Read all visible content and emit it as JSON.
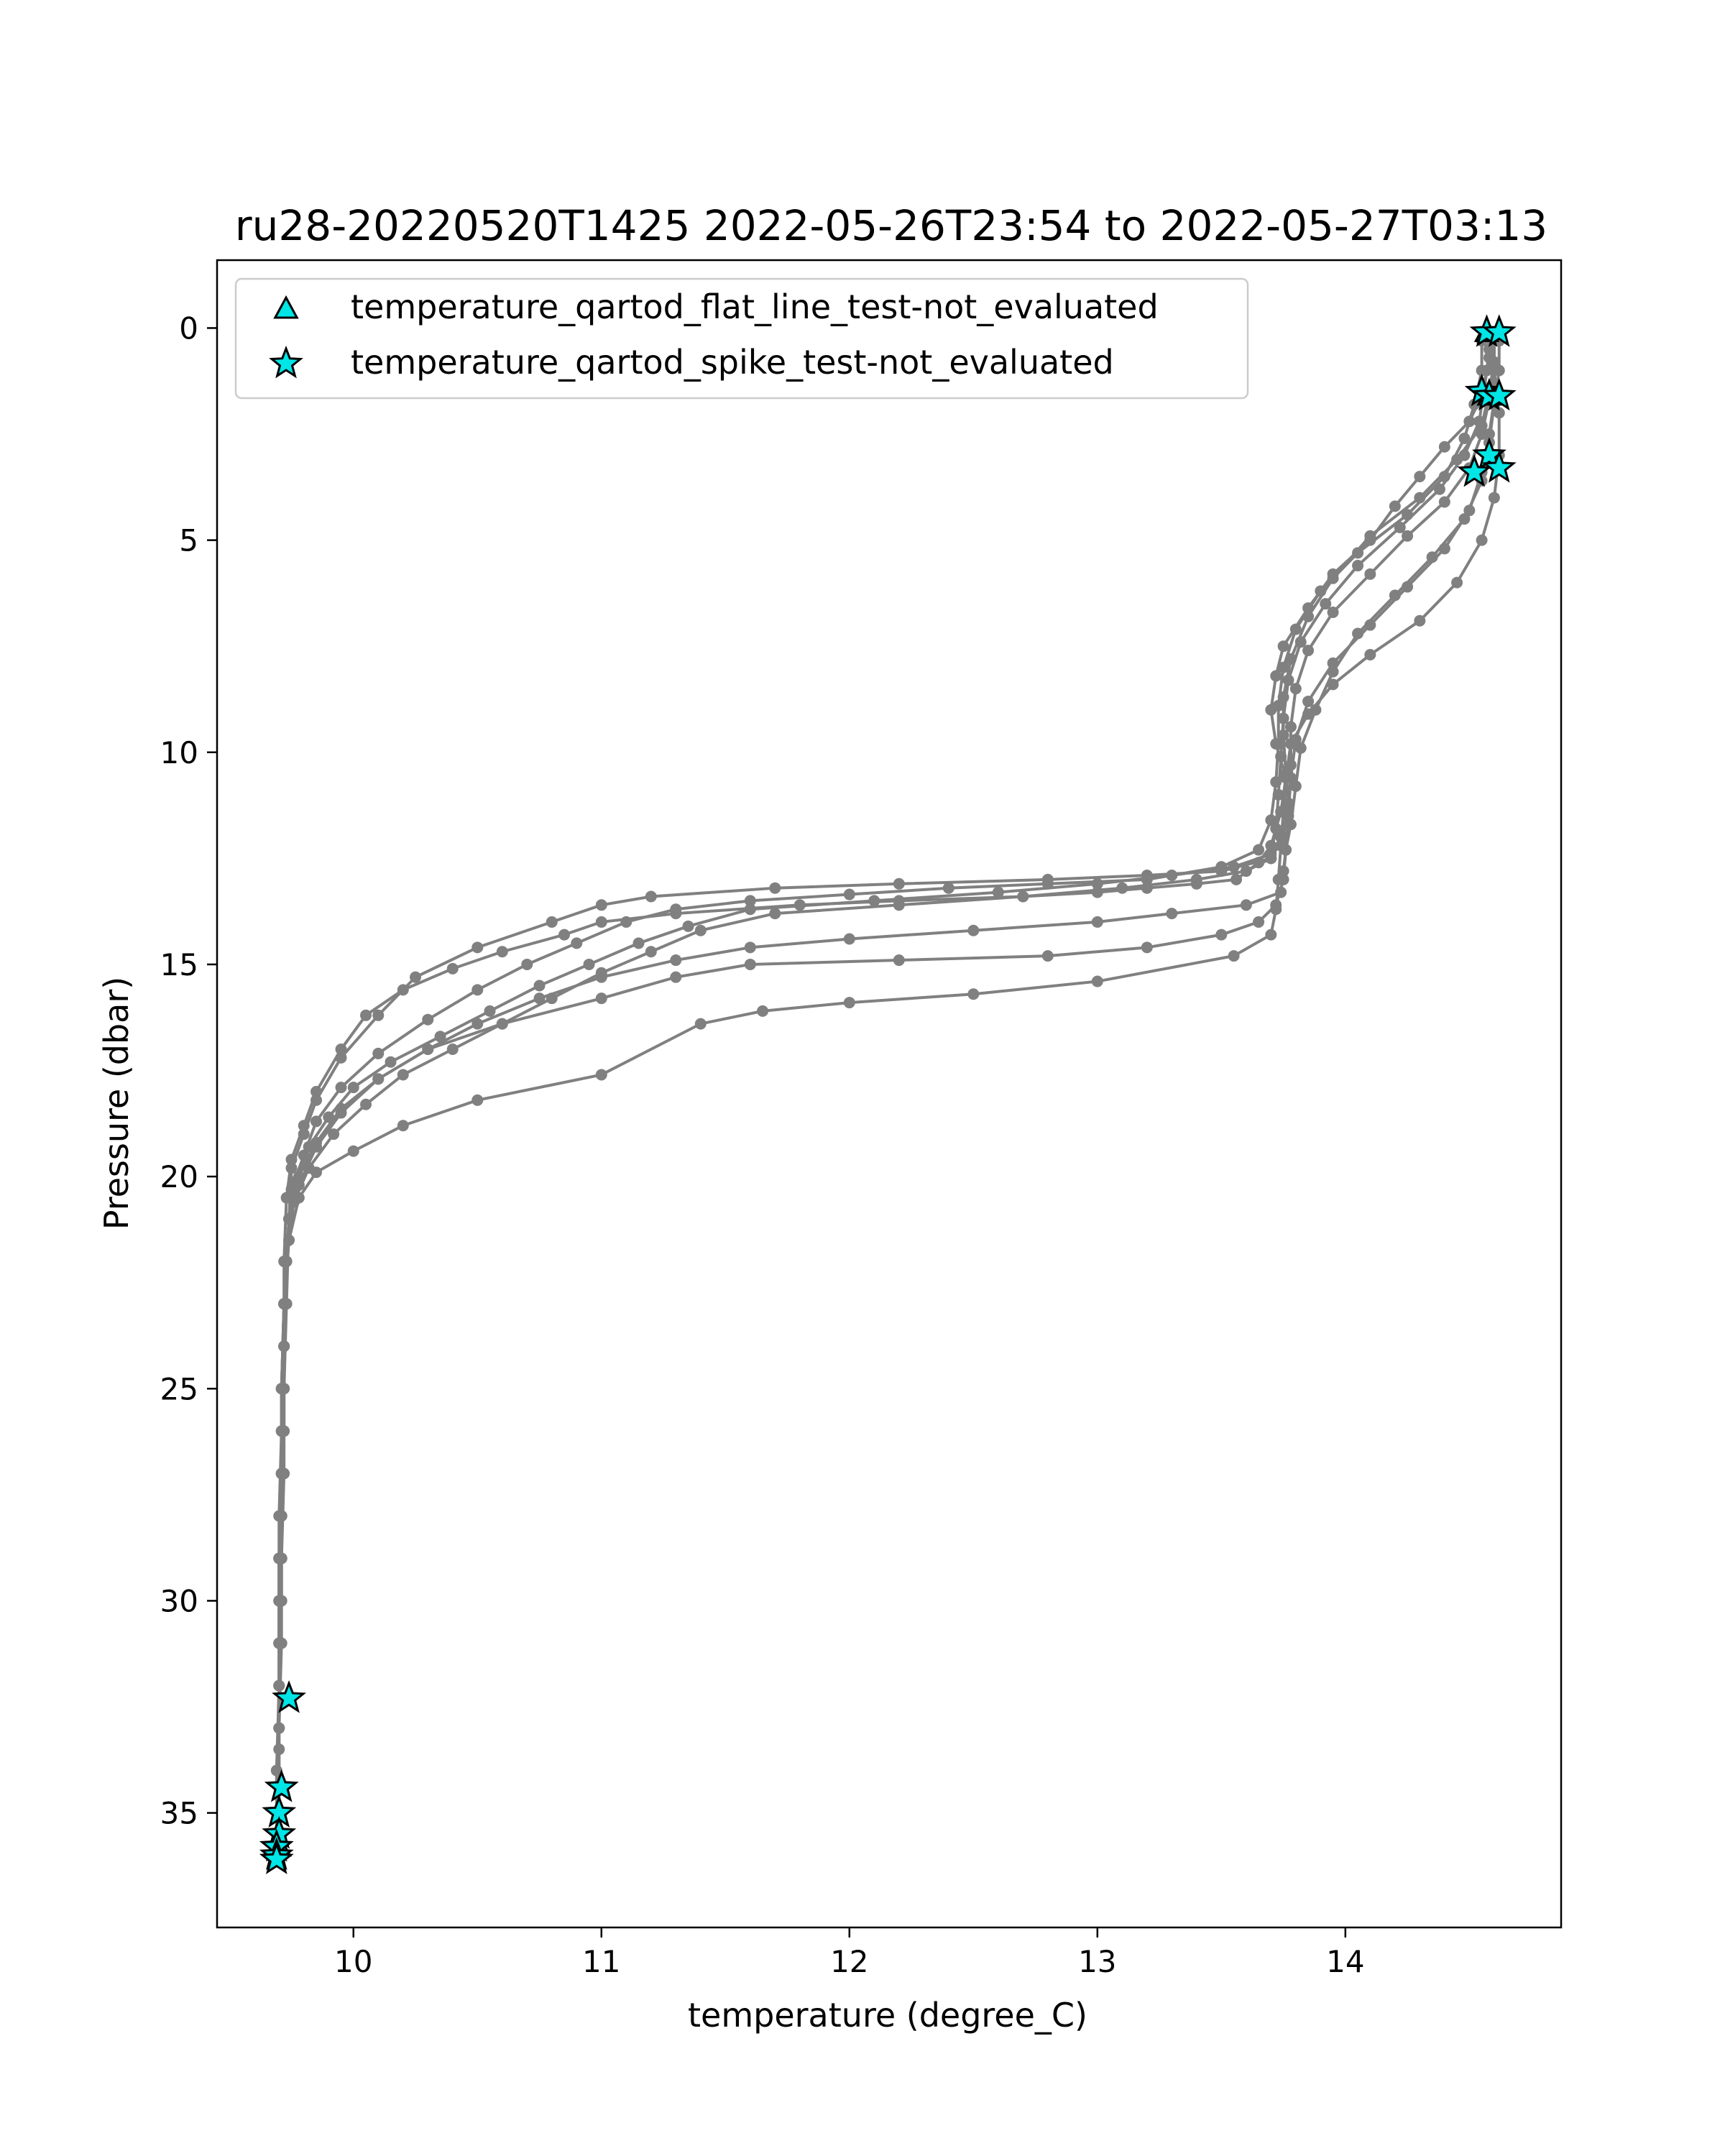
{
  "chart_data": {
    "type": "line",
    "title": "ru28-20220520T1425 2022-05-26T23:54 to 2022-05-27T03:13",
    "xlabel": "temperature (degree_C)",
    "ylabel": "Pressure (dbar)",
    "xlim": [
      9.45,
      14.87
    ],
    "ylim": [
      37.7,
      -1.6
    ],
    "y_inverted": true,
    "grid": false,
    "legend_position": "top-left",
    "xticks": [
      10,
      11,
      12,
      13,
      14
    ],
    "yticks": [
      0,
      5,
      10,
      15,
      20,
      25,
      30,
      35
    ],
    "colors": {
      "profile_line": "#808080",
      "marker_fill": "#00e5e5",
      "marker_edge": "#000000"
    },
    "legend": [
      {
        "label": "temperature_qartod_flat_line_test-not_evaluated",
        "marker": "triangle"
      },
      {
        "label": "temperature_qartod_spike_test-not_evaluated",
        "marker": "star"
      }
    ],
    "profiles": [
      {
        "temperature": [
          14.57,
          14.58,
          14.57,
          14.55,
          14.5,
          14.4,
          14.3,
          14.2,
          14.1,
          13.95,
          13.85,
          13.75,
          13.72,
          13.7,
          13.72,
          13.76,
          13.74,
          13.7,
          13.65,
          13.56,
          13.4,
          13.2,
          13.0,
          12.7,
          12.2,
          11.8,
          11.3,
          11.0,
          10.85,
          10.6,
          10.4,
          10.2,
          10.05,
          9.95,
          9.85,
          9.8,
          9.75,
          9.73,
          9.72,
          9.72,
          9.71,
          9.71,
          9.71,
          9.7,
          9.7,
          9.7,
          9.69
        ],
        "pressure": [
          0.1,
          0.5,
          1.0,
          1.6,
          2.2,
          2.8,
          3.5,
          4.2,
          5.0,
          5.8,
          6.6,
          7.5,
          8.2,
          9.0,
          9.8,
          10.6,
          11.4,
          12.2,
          12.6,
          13.0,
          13.1,
          13.2,
          13.3,
          13.4,
          13.5,
          13.6,
          13.8,
          14.0,
          14.3,
          14.7,
          15.1,
          15.6,
          16.2,
          17.0,
          18.0,
          18.8,
          19.6,
          20.5,
          22,
          24,
          26,
          28,
          30,
          32,
          33.5,
          35,
          36
        ]
      },
      {
        "temperature": [
          14.6,
          14.6,
          14.58,
          14.55,
          14.45,
          14.3,
          14.1,
          13.95,
          13.85,
          13.78,
          13.75,
          13.75,
          13.76,
          13.77,
          13.74,
          13.7,
          13.5,
          13.2,
          12.8,
          12.2,
          11.7,
          11.2,
          11.0,
          10.8,
          10.5,
          10.25,
          10.1,
          9.95,
          9.85,
          9.8,
          9.75,
          9.74,
          9.73,
          9.72,
          9.72,
          9.71,
          9.71,
          9.7,
          9.7
        ],
        "pressure": [
          0.2,
          0.8,
          1.5,
          2.3,
          3.1,
          4.0,
          4.9,
          5.9,
          6.8,
          7.8,
          8.7,
          9.6,
          10.5,
          11.4,
          12.0,
          12.5,
          12.8,
          12.9,
          13.0,
          13.1,
          13.2,
          13.4,
          13.6,
          14.0,
          14.6,
          15.3,
          16.2,
          17.2,
          18.2,
          19.0,
          19.8,
          21,
          23,
          25,
          27,
          29,
          31,
          33,
          35
        ]
      },
      {
        "temperature": [
          14.55,
          14.55,
          14.52,
          14.48,
          14.4,
          14.25,
          14.05,
          13.9,
          13.8,
          13.75,
          13.73,
          13.73,
          13.72,
          13.7,
          13.65,
          13.5,
          13.2,
          12.8,
          12.4,
          12.0,
          11.6,
          11.3,
          11.1,
          10.9,
          10.7,
          10.5,
          10.3,
          10.1,
          9.95,
          9.85,
          9.8,
          9.75,
          9.73,
          9.72,
          9.71,
          9.7,
          9.7,
          9.7,
          9.69,
          9.69
        ],
        "pressure": [
          0.3,
          1.0,
          1.8,
          2.6,
          3.5,
          4.4,
          5.3,
          6.2,
          7.1,
          8.0,
          8.9,
          9.8,
          10.7,
          11.6,
          12.3,
          12.7,
          13.0,
          13.1,
          13.2,
          13.35,
          13.5,
          13.7,
          14.0,
          14.5,
          15.0,
          15.6,
          16.3,
          17.1,
          17.9,
          18.7,
          19.5,
          20.3,
          22,
          24,
          26,
          28,
          30,
          32,
          34,
          35.5
        ]
      },
      {
        "temperature": [
          14.6,
          14.6,
          14.58,
          14.55,
          14.5,
          14.4,
          14.25,
          14.1,
          13.95,
          13.85,
          13.8,
          13.78,
          13.78,
          13.77,
          13.75,
          13.7,
          13.6,
          13.4,
          13.1,
          12.7,
          12.2,
          11.7,
          11.4,
          11.2,
          11.0,
          10.8,
          10.6,
          10.4,
          10.2,
          10.05,
          9.92,
          9.82,
          9.76,
          9.73,
          9.72,
          9.72,
          9.71,
          9.7,
          9.7
        ],
        "pressure": [
          0.2,
          0.9,
          1.7,
          2.5,
          3.3,
          4.1,
          4.9,
          5.8,
          6.7,
          7.6,
          8.5,
          9.4,
          10.3,
          11.2,
          12.0,
          12.5,
          12.8,
          13.0,
          13.2,
          13.4,
          13.6,
          13.8,
          14.2,
          14.7,
          15.2,
          15.8,
          16.4,
          17.0,
          17.6,
          18.3,
          19.0,
          19.8,
          20.6,
          22,
          24,
          26,
          28,
          30,
          32
        ]
      },
      {
        "temperature": [
          14.58,
          14.58,
          14.56,
          14.54,
          14.48,
          14.38,
          14.22,
          14.05,
          13.92,
          13.82,
          13.77,
          13.75,
          13.74,
          13.73,
          13.72,
          13.7,
          13.55,
          13.3,
          13.0,
          12.6,
          12.1,
          11.6,
          11.35,
          11.15,
          10.95,
          10.75,
          10.55,
          10.35,
          10.15,
          10.0,
          9.9,
          9.82,
          9.77,
          9.74,
          9.72,
          9.71,
          9.71,
          9.7,
          9.7
        ],
        "pressure": [
          0.1,
          0.7,
          1.4,
          2.2,
          3.0,
          3.8,
          4.7,
          5.6,
          6.5,
          7.4,
          8.3,
          9.2,
          10.1,
          11.0,
          11.8,
          12.4,
          12.7,
          12.9,
          13.1,
          13.3,
          13.5,
          13.7,
          14.1,
          14.5,
          15.0,
          15.5,
          16.1,
          16.7,
          17.3,
          17.9,
          18.6,
          19.3,
          20.1,
          21,
          23,
          25,
          27,
          29,
          31
        ]
      },
      {
        "temperature": [
          14.62,
          14.62,
          14.6,
          14.58,
          14.55,
          14.48,
          14.35,
          14.2,
          14.05,
          13.95,
          13.88,
          13.82,
          13.8,
          13.78,
          13.76,
          13.75,
          13.74,
          13.6,
          13.3,
          13.0,
          12.5,
          12.0,
          11.6,
          11.3,
          11.0,
          10.75,
          10.5,
          10.3,
          10.1,
          9.95,
          9.85,
          9.78,
          9.74,
          9.72,
          9.71,
          9.71,
          9.7,
          9.7
        ],
        "pressure": [
          0.3,
          1.0,
          1.8,
          2.7,
          3.6,
          4.5,
          5.4,
          6.3,
          7.2,
          8.1,
          9.0,
          9.9,
          10.8,
          11.7,
          12.3,
          12.8,
          13.3,
          13.6,
          13.8,
          14.0,
          14.2,
          14.4,
          14.6,
          14.9,
          15.3,
          15.8,
          16.4,
          17.0,
          17.7,
          18.4,
          19.2,
          20.0,
          21,
          23,
          25,
          27,
          29,
          31
        ]
      },
      {
        "temperature": [
          14.6,
          14.6,
          14.6,
          14.58,
          14.55,
          14.5,
          14.4,
          14.25,
          14.1,
          13.95,
          13.85,
          13.8,
          13.78,
          13.77,
          13.76,
          13.75,
          13.72,
          13.65,
          13.5,
          13.2,
          12.8,
          12.2,
          11.6,
          11.3,
          11.0,
          10.6,
          10.3,
          10.1,
          9.95,
          9.85,
          9.78,
          9.74,
          9.72,
          9.71,
          9.71,
          9.7,
          9.7
        ],
        "pressure": [
          0.2,
          0.9,
          1.7,
          2.5,
          3.4,
          4.3,
          5.2,
          6.1,
          7.0,
          7.9,
          8.8,
          9.7,
          10.6,
          11.5,
          12.3,
          13.0,
          13.6,
          14.0,
          14.3,
          14.6,
          14.8,
          14.9,
          15.0,
          15.3,
          15.8,
          16.4,
          17.0,
          17.7,
          18.5,
          19.3,
          20.2,
          21,
          23,
          25,
          27,
          29,
          31
        ]
      },
      {
        "temperature": [
          14.58,
          14.6,
          14.62,
          14.62,
          14.6,
          14.55,
          14.45,
          14.3,
          14.1,
          13.95,
          13.85,
          13.78,
          13.76,
          13.75,
          13.74,
          13.73,
          13.72,
          13.7,
          13.55,
          13.0,
          12.5,
          12.0,
          11.65,
          11.4,
          11.0,
          10.5,
          10.2,
          10.0,
          9.85,
          9.78,
          9.74,
          9.72,
          9.72,
          9.71,
          9.71,
          9.7,
          9.7
        ],
        "pressure": [
          0.2,
          1.0,
          2.0,
          3.0,
          4.0,
          5.0,
          6.0,
          6.9,
          7.7,
          8.4,
          9.1,
          9.8,
          10.6,
          11.4,
          12.2,
          13.0,
          13.7,
          14.3,
          14.8,
          15.4,
          15.7,
          15.9,
          16.1,
          16.4,
          17.6,
          18.2,
          18.8,
          19.4,
          19.9,
          20.5,
          21.5,
          23,
          25,
          27,
          29,
          31,
          33
        ]
      }
    ],
    "spike_not_evaluated": {
      "temperature": [
        14.57,
        14.62,
        14.55,
        14.58,
        14.62,
        14.58,
        14.52,
        14.62,
        9.74,
        9.71,
        9.7,
        9.7,
        9.69,
        9.69,
        9.69
      ],
      "pressure": [
        0.1,
        0.1,
        1.5,
        1.6,
        1.6,
        3.0,
        3.4,
        3.3,
        32.3,
        34.4,
        35.0,
        35.5,
        35.8,
        36.0,
        36.1
      ]
    },
    "flat_line_not_evaluated": {
      "temperature": [
        14.57,
        14.58,
        9.7
      ],
      "pressure": [
        0.1,
        1.6,
        35.8
      ]
    }
  }
}
